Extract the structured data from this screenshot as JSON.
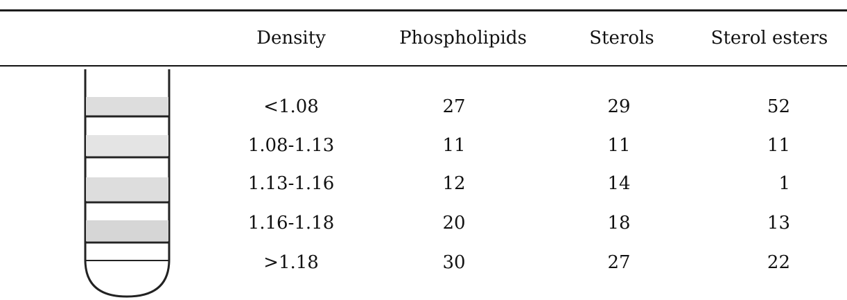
{
  "table": {
    "headers": [
      "Density",
      "Phospholipids",
      "Sterols",
      "Sterol esters"
    ],
    "rows": [
      [
        "<1.08",
        27,
        29,
        52
      ],
      [
        "1.08-1.13",
        11,
        11,
        11
      ],
      [
        "1.13-1.16",
        12,
        14,
        1
      ],
      [
        "1.16-1.18",
        20,
        18,
        13
      ],
      [
        ">1.18",
        30,
        27,
        22
      ]
    ]
  }
}
